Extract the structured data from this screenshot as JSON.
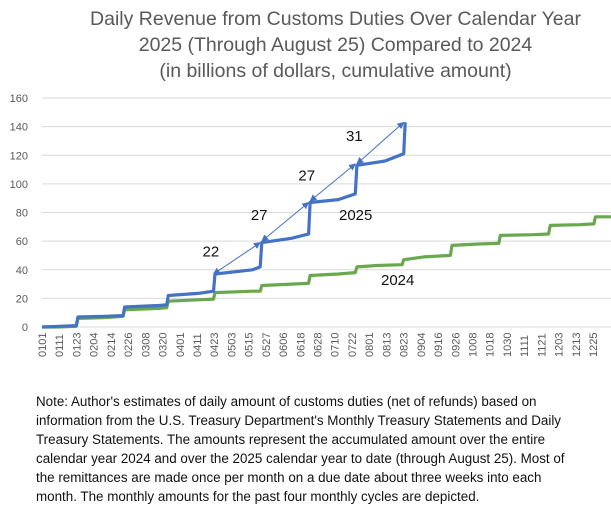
{
  "chart_data": {
    "type": "line",
    "title_lines": [
      "Daily Revenue from Customs Duties Over Calendar Year",
      "2025 (Through August 25) Compared to 2024",
      "(in billions of dollars, cumulative amount)"
    ],
    "xlabel": "",
    "ylabel": "",
    "ylim": [
      0,
      160
    ],
    "yticks": [
      0,
      20,
      40,
      60,
      80,
      100,
      120,
      140,
      160
    ],
    "xlim_day": [
      0,
      365
    ],
    "x_tick_labels": [
      "0101",
      "0111",
      "0123",
      "0204",
      "0214",
      "0226",
      "0308",
      "0320",
      "0401",
      "0411",
      "0423",
      "0503",
      "0515",
      "0527",
      "0606",
      "0618",
      "0628",
      "0710",
      "0722",
      "0801",
      "0813",
      "0823",
      "0904",
      "0916",
      "0926",
      "1008",
      "1018",
      "1030",
      "1111",
      "1121",
      "1203",
      "1213",
      "1225"
    ],
    "grid": true,
    "legend": "none (direct labels on lines)",
    "series": [
      {
        "name": "2024",
        "color": "#6aa84f",
        "label_position": "below line near 0813",
        "points": [
          [
            0,
            0
          ],
          [
            11,
            0
          ],
          [
            22,
            0.5
          ],
          [
            23,
            6
          ],
          [
            40,
            6.5
          ],
          [
            52,
            7.5
          ],
          [
            53,
            12
          ],
          [
            75,
            13
          ],
          [
            80,
            13.5
          ],
          [
            81,
            18
          ],
          [
            100,
            19
          ],
          [
            110,
            19.5
          ],
          [
            111,
            24
          ],
          [
            135,
            25
          ],
          [
            140,
            25
          ],
          [
            141,
            29
          ],
          [
            160,
            30
          ],
          [
            171,
            30.5
          ],
          [
            172,
            36
          ],
          [
            190,
            37
          ],
          [
            201,
            38
          ],
          [
            202,
            42
          ],
          [
            215,
            43
          ],
          [
            231,
            43.5
          ],
          [
            232,
            47
          ],
          [
            245,
            49
          ],
          [
            262,
            50
          ],
          [
            263,
            57
          ],
          [
            280,
            58
          ],
          [
            293,
            58.5
          ],
          [
            294,
            64
          ],
          [
            315,
            64.5
          ],
          [
            325,
            65
          ],
          [
            326,
            71
          ],
          [
            345,
            71.5
          ],
          [
            354,
            72
          ],
          [
            355,
            77
          ],
          [
            365,
            77
          ]
        ]
      },
      {
        "name": "2025",
        "color": "#4472c4",
        "label_position": "below line near 0722",
        "points": [
          [
            0,
            0
          ],
          [
            11,
            0.5
          ],
          [
            22,
            1
          ],
          [
            23,
            7
          ],
          [
            40,
            7.5
          ],
          [
            52,
            8
          ],
          [
            53,
            14
          ],
          [
            75,
            15
          ],
          [
            80,
            15.5
          ],
          [
            81,
            22
          ],
          [
            100,
            23.5
          ],
          [
            110,
            25
          ],
          [
            111,
            37
          ],
          [
            135,
            40
          ],
          [
            140,
            42
          ],
          [
            141,
            59
          ],
          [
            160,
            62
          ],
          [
            171,
            65
          ],
          [
            172,
            87
          ],
          [
            190,
            89
          ],
          [
            201,
            93
          ],
          [
            202,
            113
          ],
          [
            220,
            116
          ],
          [
            232,
            121
          ],
          [
            233,
            143
          ]
        ]
      }
    ],
    "annotations": [
      {
        "text": "22",
        "from_day": 110,
        "from_value": 37,
        "to_day": 140,
        "to_value": 59
      },
      {
        "text": "27",
        "from_day": 141,
        "from_value": 60,
        "to_day": 171,
        "to_value": 87
      },
      {
        "text": "27",
        "from_day": 172,
        "from_value": 88,
        "to_day": 201,
        "to_value": 114
      },
      {
        "text": "31",
        "from_day": 202,
        "from_value": 114,
        "to_day": 232,
        "to_value": 143
      }
    ]
  },
  "note_lines": [
    "Note: Author's estimates of daily amount of customs duties (net of refunds) based on",
    "information from the U.S. Treasury Department's Monthly Treasury Statements and Daily",
    "Treasury Statements. The amounts represent the accumulated amount over the entire",
    "calendar year 2024 and over the 2025 calendar year to date (through August 25). Most of",
    "the remittances are made once per month on a due date about three weeks into each",
    "month. The monthly amounts for the past four monthly cycles are depicted."
  ]
}
